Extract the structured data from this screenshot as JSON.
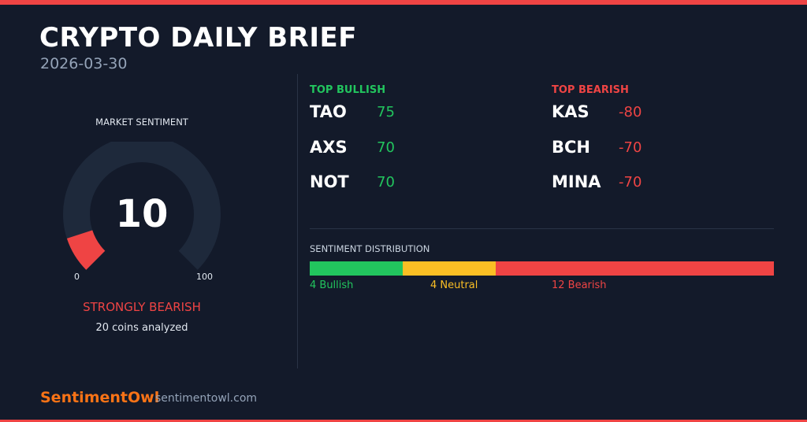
{
  "header": {
    "title": "CRYPTO DAILY BRIEF",
    "date": "2026-03-30"
  },
  "sentiment": {
    "label": "MARKET SENTIMENT",
    "value": "10",
    "fraction": 0.1,
    "min_label": "0",
    "max_label": "100",
    "verdict": "STRONGLY BEARISH",
    "coins_analyzed": "20 coins analyzed"
  },
  "bullish": {
    "heading": "TOP BULLISH",
    "items": [
      {
        "symbol": "TAO",
        "score": "75"
      },
      {
        "symbol": "AXS",
        "score": "70"
      },
      {
        "symbol": "NOT",
        "score": "70"
      }
    ]
  },
  "bearish": {
    "heading": "TOP BEARISH",
    "items": [
      {
        "symbol": "KAS",
        "score": "-80"
      },
      {
        "symbol": "BCH",
        "score": "-70"
      },
      {
        "symbol": "MINA",
        "score": "-70"
      }
    ]
  },
  "distribution": {
    "label": "SENTIMENT DISTRIBUTION",
    "bullish": {
      "count": 4,
      "text": "4 Bullish"
    },
    "neutral": {
      "count": 4,
      "text": "4 Neutral"
    },
    "bearish": {
      "count": 12,
      "text": "12 Bearish"
    }
  },
  "footer": {
    "brand": "SentimentOwl",
    "site": "sentimentowl.com"
  },
  "colors": {
    "background": "#131a2a",
    "bullish": "#22c55e",
    "neutral": "#fbbf24",
    "bearish": "#ef4444",
    "brand": "#f97316",
    "gauge_track": "#1e293b"
  }
}
